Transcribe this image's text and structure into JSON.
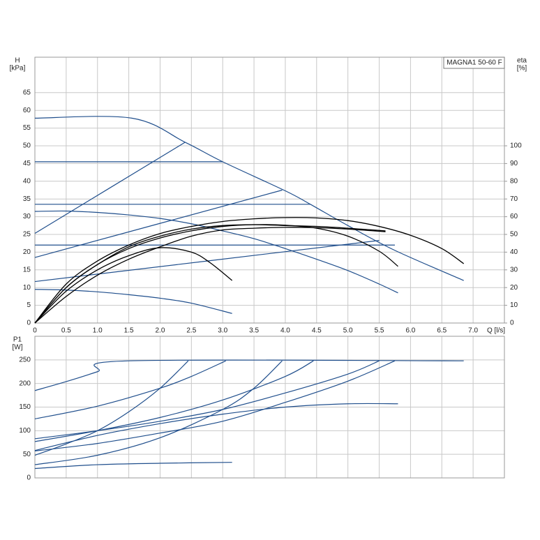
{
  "chart_data": [
    {
      "type": "line",
      "annotation": "MAGNA1 50-60 F",
      "y_label": "H",
      "y_unit": "[kPa]",
      "y2_label": "eta",
      "y2_unit": "[%]",
      "x_label": "Q [l/s]",
      "xlim": [
        0,
        7.5
      ],
      "ylim": [
        0,
        75
      ],
      "y2lim": [
        0,
        150
      ],
      "grid": true,
      "xticks": [
        0,
        0.5,
        {
          "value": 1,
          "label": "1.0"
        },
        1.5,
        {
          "value": 2,
          "label": "2.0"
        },
        2.5,
        {
          "value": 3,
          "label": "3.0"
        },
        3.5,
        {
          "value": 4,
          "label": "4.0"
        },
        4.5,
        {
          "value": 5,
          "label": "5.0"
        },
        5.5,
        {
          "value": 6,
          "label": "6.0"
        },
        6.5,
        {
          "value": 7,
          "label": "7.0"
        }
      ],
      "yticks": [
        0,
        5,
        10,
        15,
        20,
        25,
        30,
        35,
        40,
        45,
        50,
        55,
        60,
        65
      ],
      "y2ticks": [
        0,
        10,
        20,
        30,
        40,
        50,
        60,
        70,
        80,
        90,
        100
      ],
      "series": [
        {
          "color": "#1f4e8c",
          "x": [
            0,
            1.55,
            2.4,
            3,
            4,
            4.4,
            5,
            5.75,
            6.85
          ],
          "values": [
            57.8,
            57.8,
            51,
            45.5,
            37.3,
            33.5,
            27.5,
            20.5,
            12
          ]
        },
        {
          "color": "#1f4e8c",
          "x": [
            0,
            3
          ],
          "values": [
            45.5,
            45.5
          ]
        },
        {
          "color": "#1f4e8c",
          "x": [
            0,
            4.4
          ],
          "values": [
            33.5,
            33.5
          ]
        },
        {
          "color": "#1f4e8c",
          "x": [
            0,
            5.75
          ],
          "values": [
            22,
            22
          ]
        },
        {
          "color": "#1f4e8c",
          "x": [
            0,
            2.4
          ],
          "values": [
            25.3,
            51
          ]
        },
        {
          "color": "#1f4e8c",
          "x": [
            0,
            3.95
          ],
          "values": [
            18.5,
            37.5
          ]
        },
        {
          "color": "#1f4e8c",
          "x": [
            0,
            5.5
          ],
          "values": [
            11.7,
            23.3
          ]
        },
        {
          "color": "#1f4e8c",
          "x": [
            0,
            0.5,
            1,
            1.5,
            2,
            2.5,
            3,
            3.5,
            4,
            4.5,
            5,
            5.5,
            5.8
          ],
          "values": [
            31.5,
            31.6,
            31.2,
            30.5,
            29.5,
            28,
            26,
            23.8,
            21,
            18,
            14.8,
            11,
            8.5
          ]
        },
        {
          "color": "#1f4e8c",
          "x": [
            0,
            0.5,
            1,
            1.5,
            2,
            2.5,
            3.15
          ],
          "values": [
            9.5,
            9.3,
            8.8,
            8,
            7,
            5.6,
            2.7
          ]
        },
        {
          "color": "#000000",
          "axis": "y2",
          "x": [
            0,
            0.5,
            1,
            1.5,
            2,
            2.5,
            3,
            3.5,
            4,
            4.5,
            5,
            5.5,
            6,
            6.5,
            6.85
          ],
          "values": [
            0,
            22,
            35,
            44,
            50.5,
            54.5,
            57.3,
            58.8,
            59.5,
            59.3,
            57.8,
            54.5,
            49.5,
            42,
            33.5
          ]
        },
        {
          "color": "#000000",
          "axis": "y2",
          "x": [
            0,
            0.5,
            1,
            1.5,
            2,
            2.5,
            3,
            3.5,
            4,
            4.5,
            5,
            5.5,
            5.8
          ],
          "values": [
            0,
            20,
            33,
            42,
            48,
            52,
            54.5,
            55.5,
            55.2,
            53.5,
            49,
            40.5,
            32
          ]
        },
        {
          "color": "#000000",
          "axis": "y2",
          "x": [
            0,
            0.5,
            1,
            1.5,
            2,
            2.5,
            2.8,
            3.15
          ],
          "values": [
            0,
            18,
            30,
            38,
            42.5,
            40,
            34,
            24
          ]
        },
        {
          "color": "#000000",
          "axis": "y2",
          "x": [
            0,
            0.5,
            1,
            1.5,
            2,
            2.5,
            3,
            3.5,
            4,
            4.5,
            5,
            5.6
          ],
          "values": [
            0,
            20,
            33,
            43,
            49,
            53,
            55,
            55.5,
            55,
            54.5,
            53.5,
            52
          ]
        },
        {
          "color": "#000000",
          "axis": "y2",
          "x": [
            0,
            0.5,
            1,
            1.5,
            2,
            2.5,
            3,
            3.5,
            4,
            4.5,
            5,
            5.6
          ],
          "values": [
            0,
            15,
            27,
            36,
            43,
            49,
            52.5,
            53.5,
            54,
            53.8,
            53,
            51.5
          ]
        }
      ]
    },
    {
      "type": "line",
      "y_label": "P1",
      "y_unit": "[W]",
      "xlim": [
        0,
        7.5
      ],
      "ylim": [
        0,
        300
      ],
      "grid": true,
      "xticks": [
        0,
        0.5,
        1,
        1.5,
        2,
        2.5,
        3,
        3.5,
        4,
        4.5,
        5,
        5.5,
        6,
        6.5,
        7
      ],
      "yticks": [
        0,
        50,
        100,
        150,
        200,
        250
      ],
      "series": [
        {
          "color": "#1f4e8c",
          "x": [
            0,
            0.5,
            1,
            1.5,
            6.85
          ],
          "values": [
            185,
            204,
            225,
            248,
            248
          ]
        },
        {
          "color": "#1f4e8c",
          "x": [
            0,
            1,
            2,
            2.5,
            3.05
          ],
          "values": [
            125,
            152,
            190,
            215,
            248
          ]
        },
        {
          "color": "#1f4e8c",
          "x": [
            0,
            1,
            2,
            3,
            4,
            4.45
          ],
          "values": [
            77,
            100,
            128,
            165,
            215,
            248
          ]
        },
        {
          "color": "#1f4e8c",
          "x": [
            0,
            1,
            2,
            3,
            4,
            5,
            5.5
          ],
          "values": [
            83,
            100,
            120,
            145,
            180,
            220,
            248
          ]
        },
        {
          "color": "#1f4e8c",
          "x": [
            0,
            0.5,
            1,
            1.5,
            2,
            2.45
          ],
          "values": [
            48,
            72,
            100,
            140,
            190,
            248
          ]
        },
        {
          "color": "#1f4e8c",
          "x": [
            0,
            1,
            2,
            3,
            3.5,
            3.95
          ],
          "values": [
            28,
            48,
            85,
            145,
            190,
            248
          ]
        },
        {
          "color": "#1f4e8c",
          "x": [
            0,
            1,
            2,
            3,
            4,
            5,
            5.75
          ],
          "values": [
            57,
            73,
            95,
            120,
            160,
            205,
            248
          ]
        },
        {
          "color": "#1f4e8c",
          "x": [
            0,
            1,
            2,
            3,
            4,
            5,
            5.8
          ],
          "values": [
            58,
            90,
            115,
            135,
            150,
            157,
            157
          ]
        },
        {
          "color": "#1f4e8c",
          "x": [
            0,
            1,
            2,
            3.15
          ],
          "values": [
            20,
            28,
            31,
            33
          ]
        }
      ]
    }
  ]
}
